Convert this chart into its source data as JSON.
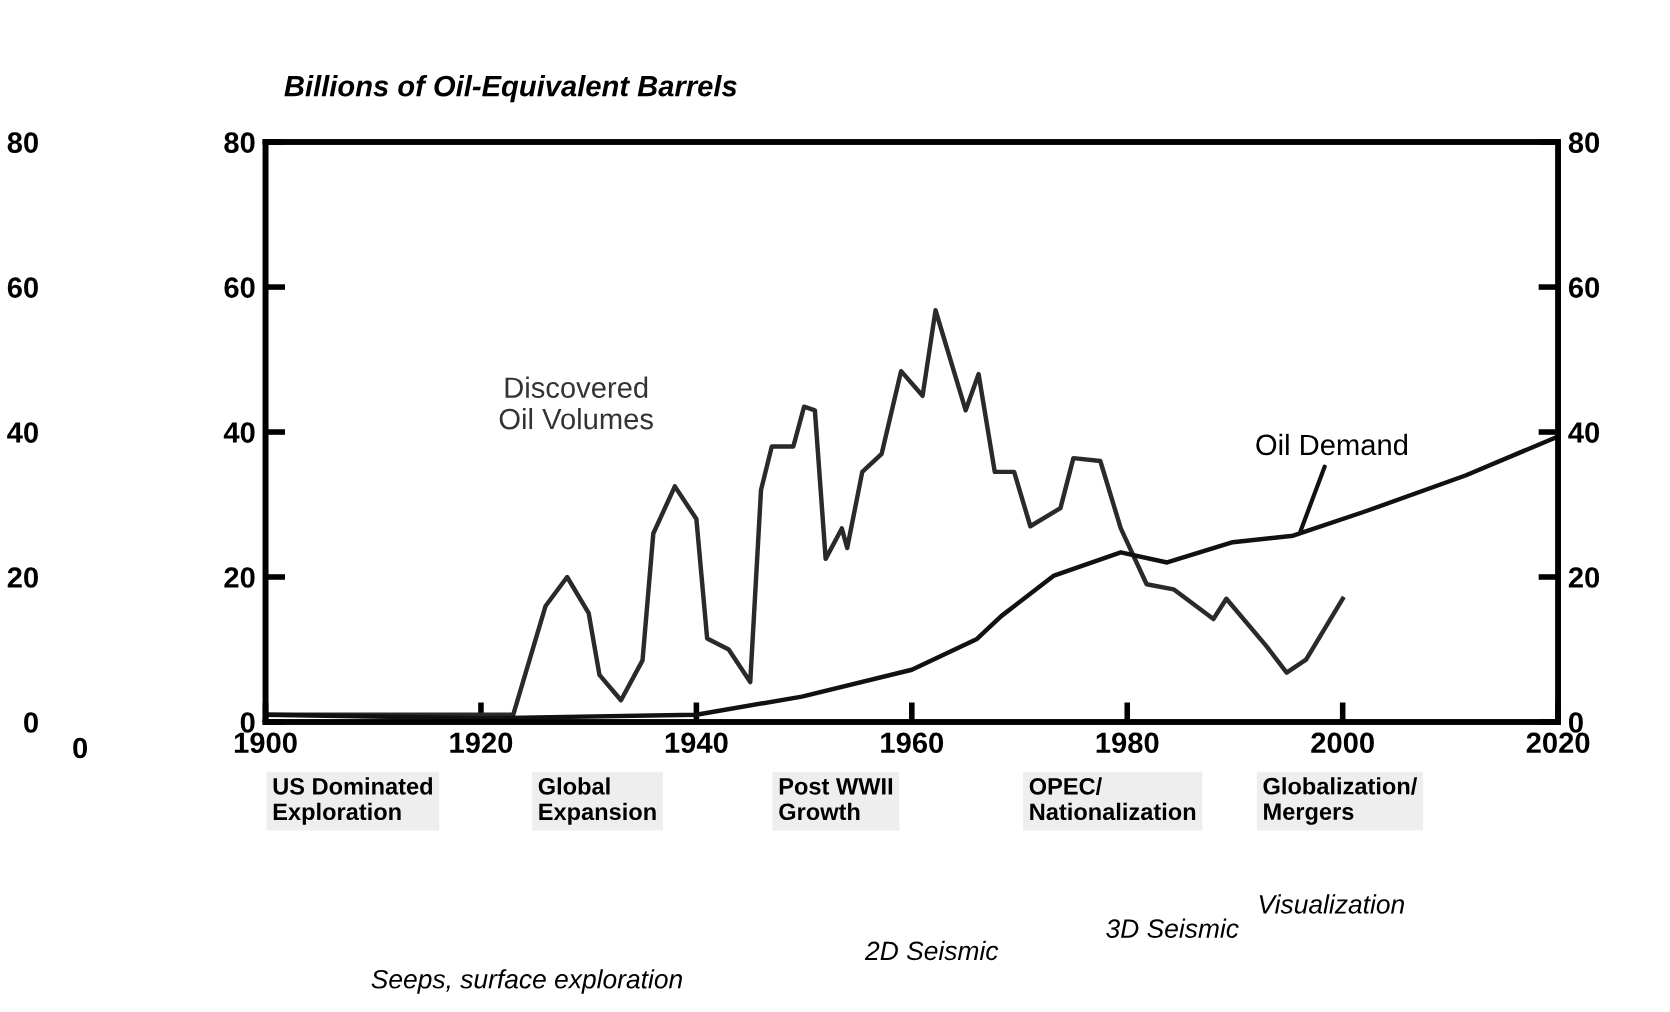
{
  "chart_data": {
    "type": "line",
    "title": "Billions of Oil-Equivalent Barrels",
    "xlim": [
      1900,
      2020
    ],
    "xticks": [
      1900,
      1920,
      1940,
      1960,
      1980,
      2000,
      2020
    ],
    "ylim": [
      0,
      80
    ],
    "yticks": [
      0,
      20,
      40,
      60,
      80
    ],
    "y2lim": [
      0,
      80
    ],
    "y2ticks": [
      0,
      20,
      40,
      60,
      80
    ],
    "y3lim": [
      0,
      80
    ],
    "y3ticks": [
      0,
      20,
      40,
      60,
      80
    ],
    "grid": false,
    "legend": false,
    "marker": "none",
    "line_style": "solid",
    "series": [
      {
        "color": "#2a2a2a",
        "x": [
          1900,
          1923,
          1926,
          1928,
          1930,
          1931,
          1933,
          1935,
          1936,
          1938,
          1940,
          1941,
          1943,
          1945,
          1946,
          1947,
          1949,
          1950,
          1951,
          1952,
          1953.5,
          1954,
          1955.4,
          1957.2,
          1959,
          1961,
          1962.2,
          1965,
          1966.2,
          1967.7,
          1969.5,
          1971,
          1973.8,
          1975,
          1977.5,
          1979.4,
          1981.8,
          1984.3,
          1988,
          1989.2,
          1992.9,
          1994.8,
          1996.6,
          2000
        ],
        "values": [
          1,
          1,
          16,
          20,
          15,
          6.5,
          3,
          8.5,
          26,
          32.5,
          28,
          11.5,
          10,
          5.5,
          32,
          38,
          38,
          43.5,
          43,
          22.5,
          26.7,
          24,
          34.5,
          37,
          48.4,
          45,
          56.8,
          43,
          48,
          34.5,
          34.5,
          27,
          29.5,
          36.4,
          36,
          26.7,
          19,
          18.3,
          14.2,
          17,
          10.5,
          6.8,
          8.6,
          17
        ]
      },
      {
        "color": "#111111",
        "x": [
          1900,
          1920,
          1940,
          1949.8,
          1960,
          1966,
          1968.3,
          1973.2,
          1979.4,
          1983.7,
          1989.8,
          1995.4,
          2002,
          2011.4,
          2019.7
        ],
        "values": [
          1,
          0.5,
          1,
          3.5,
          7.2,
          11.4,
          14.6,
          20.2,
          23.4,
          22,
          24.8,
          25.7,
          29,
          34,
          39.2
        ]
      }
    ],
    "annotations": [
      "Discovered\nOil Volumes",
      {
        "text": "Oil Demand",
        "x": 1996,
        "y": 26
      },
      "US Dominated\nExploration",
      "Global\nExpansion",
      "Post WWII\nGrowth",
      "OPEC/\nNationalization",
      "Globalization/\nMergers",
      "Visualization",
      "3D Seismic",
      "2D Seismic",
      "Seeps, surface exploration",
      "0"
    ]
  }
}
